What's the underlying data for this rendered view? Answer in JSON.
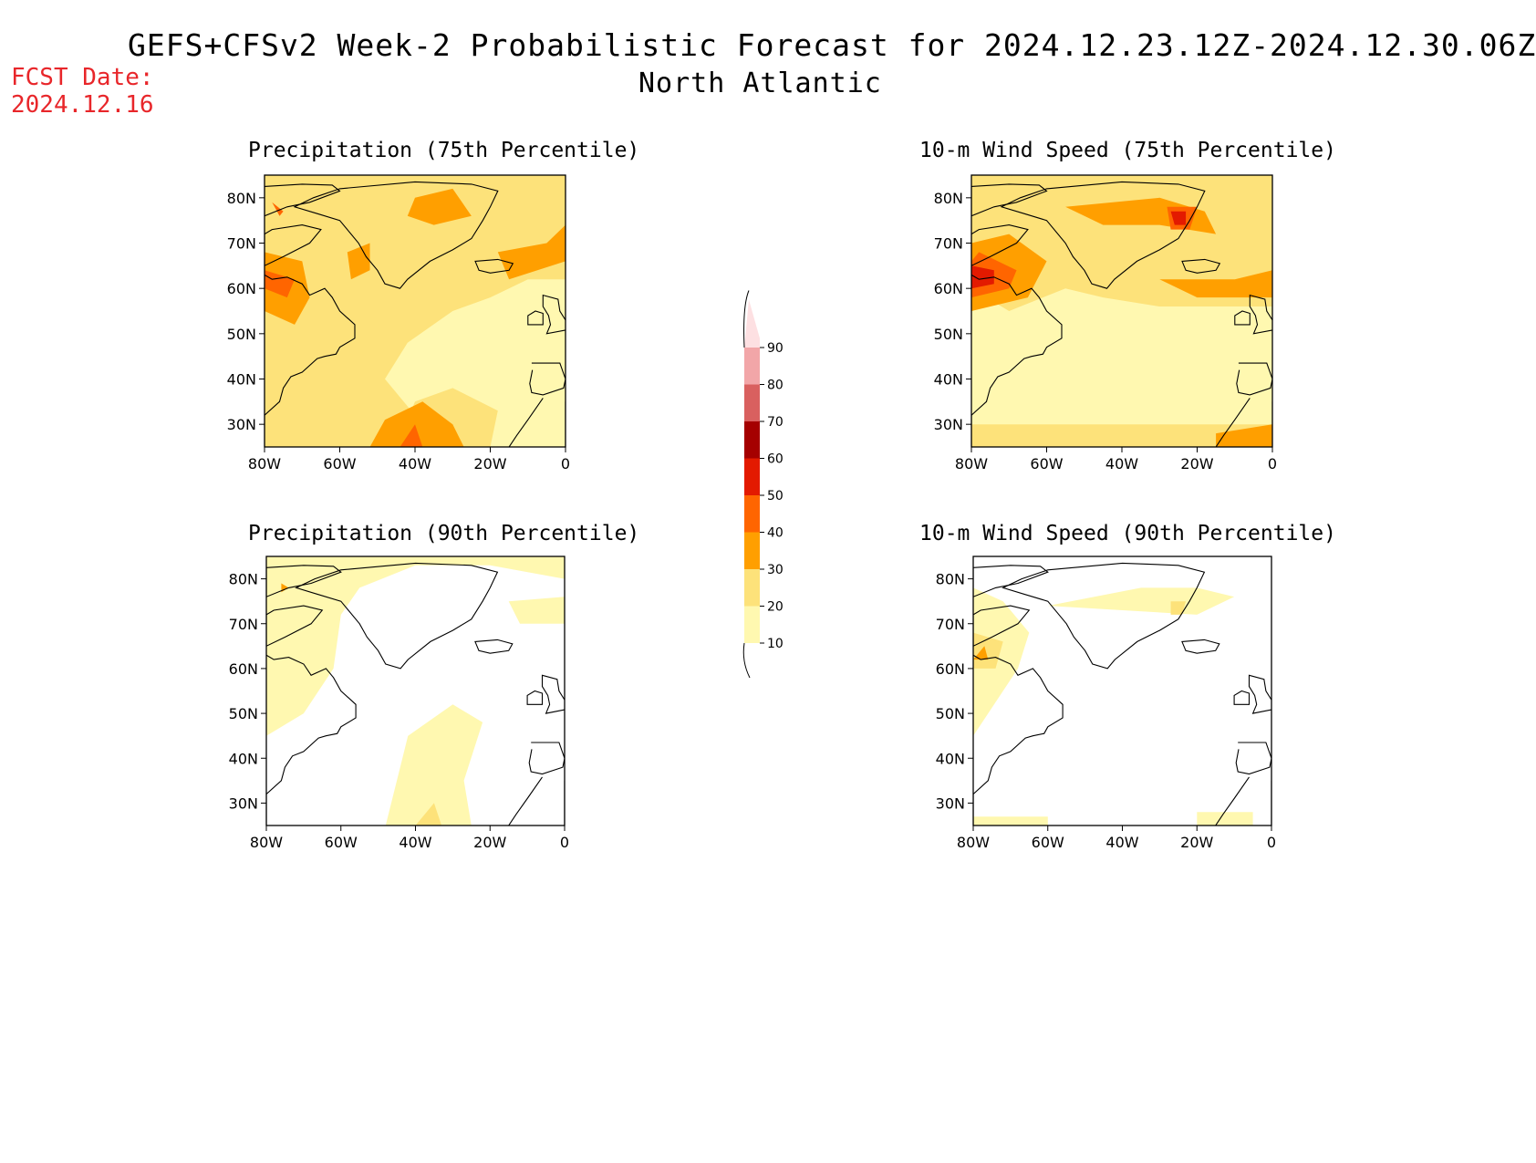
{
  "header": {
    "title": "GEFS+CFSv2 Week-2 Probabilistic Forecast for 2024.12.23.12Z-2024.12.30.06Z",
    "subtitle": "North Atlantic",
    "fcst_label": "FCST Date:",
    "fcst_date": "2024.12.16"
  },
  "axes": {
    "lat_labels": [
      "80N",
      "70N",
      "60N",
      "50N",
      "40N",
      "30N"
    ],
    "lat_values": [
      80,
      70,
      60,
      50,
      40,
      30
    ],
    "lon_labels": [
      "80W",
      "60W",
      "40W",
      "20W",
      "0"
    ],
    "lon_values": [
      -80,
      -60,
      -40,
      -20,
      0
    ],
    "lat_range": [
      25,
      85
    ],
    "lon_range": [
      -80,
      0
    ]
  },
  "colorbar": {
    "labels": [
      "10",
      "20",
      "30",
      "40",
      "50",
      "60",
      "70",
      "80",
      "90"
    ],
    "colors": [
      "#fff8b0",
      "#fde27a",
      "#ff9f00",
      "#ff6500",
      "#e31a00",
      "#a50000",
      "#d9605f",
      "#f2a6a8",
      "#fde0e2"
    ]
  },
  "panels": [
    {
      "id": "precip75",
      "title": "Precipitation (75th Percentile)"
    },
    {
      "id": "wind75",
      "title": "10-m Wind Speed (75th Percentile)"
    },
    {
      "id": "precip90",
      "title": "Precipitation (90th Percentile)"
    },
    {
      "id": "wind90",
      "title": "10-m Wind Speed (90th Percentile)"
    }
  ]
}
